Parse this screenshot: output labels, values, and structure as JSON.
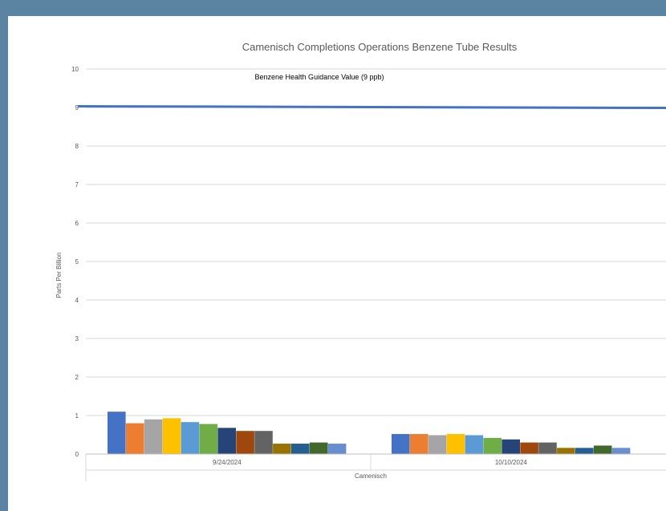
{
  "chart_data": {
    "type": "bar",
    "title": "Camenisch Completions Operations Benzene Tube Results",
    "ylabel": "Parts Per Billion",
    "xlabel": "Camenisch",
    "ylim": [
      0,
      10
    ],
    "yticks": [
      "0",
      "1",
      "2",
      "3",
      "4",
      "5",
      "6",
      "7",
      "8",
      "9",
      "10"
    ],
    "grid": true,
    "categories": [
      "9/24/2024",
      "10/10/2024"
    ],
    "series": [
      {
        "values": [
          1.1,
          0.52
        ],
        "color": "#4472c4"
      },
      {
        "values": [
          0.8,
          0.52
        ],
        "color": "#ed7d31"
      },
      {
        "values": [
          0.9,
          0.49
        ],
        "color": "#a5a5a5"
      },
      {
        "values": [
          0.93,
          0.52
        ],
        "color": "#ffc000"
      },
      {
        "values": [
          0.83,
          0.49
        ],
        "color": "#5b9bd5"
      },
      {
        "values": [
          0.78,
          0.42
        ],
        "color": "#70ad47"
      },
      {
        "values": [
          0.68,
          0.38
        ],
        "color": "#264478"
      },
      {
        "values": [
          0.6,
          0.3
        ],
        "color": "#9e480e"
      },
      {
        "values": [
          0.6,
          0.3
        ],
        "color": "#636363"
      },
      {
        "values": [
          0.27,
          0.16
        ],
        "color": "#997300"
      },
      {
        "values": [
          0.27,
          0.16
        ],
        "color": "#255e91"
      },
      {
        "values": [
          0.3,
          0.22
        ],
        "color": "#43682b"
      },
      {
        "values": [
          0.27,
          0.16
        ],
        "color": "#698ed0"
      }
    ],
    "reference_line": {
      "value": 9,
      "label": "Benzene Health Guidance Value (9 ppb)",
      "color": "#4472c4"
    }
  }
}
